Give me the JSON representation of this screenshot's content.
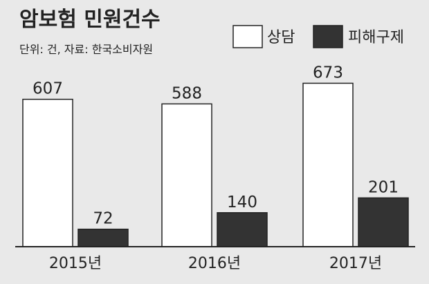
{
  "chart_data": {
    "type": "bar",
    "title": "암보험 민원건수",
    "subtitle": "단위: 건, 자료: 한국소비자원",
    "categories": [
      "2015년",
      "2016년",
      "2017년"
    ],
    "series": [
      {
        "name": "상담",
        "values": [
          607,
          588,
          673
        ],
        "color": "#ffffff"
      },
      {
        "name": "피해구제",
        "values": [
          72,
          140,
          201
        ],
        "color": "#333333"
      }
    ],
    "ylim": [
      0,
      700
    ],
    "grid": false,
    "legend": "top-right"
  }
}
